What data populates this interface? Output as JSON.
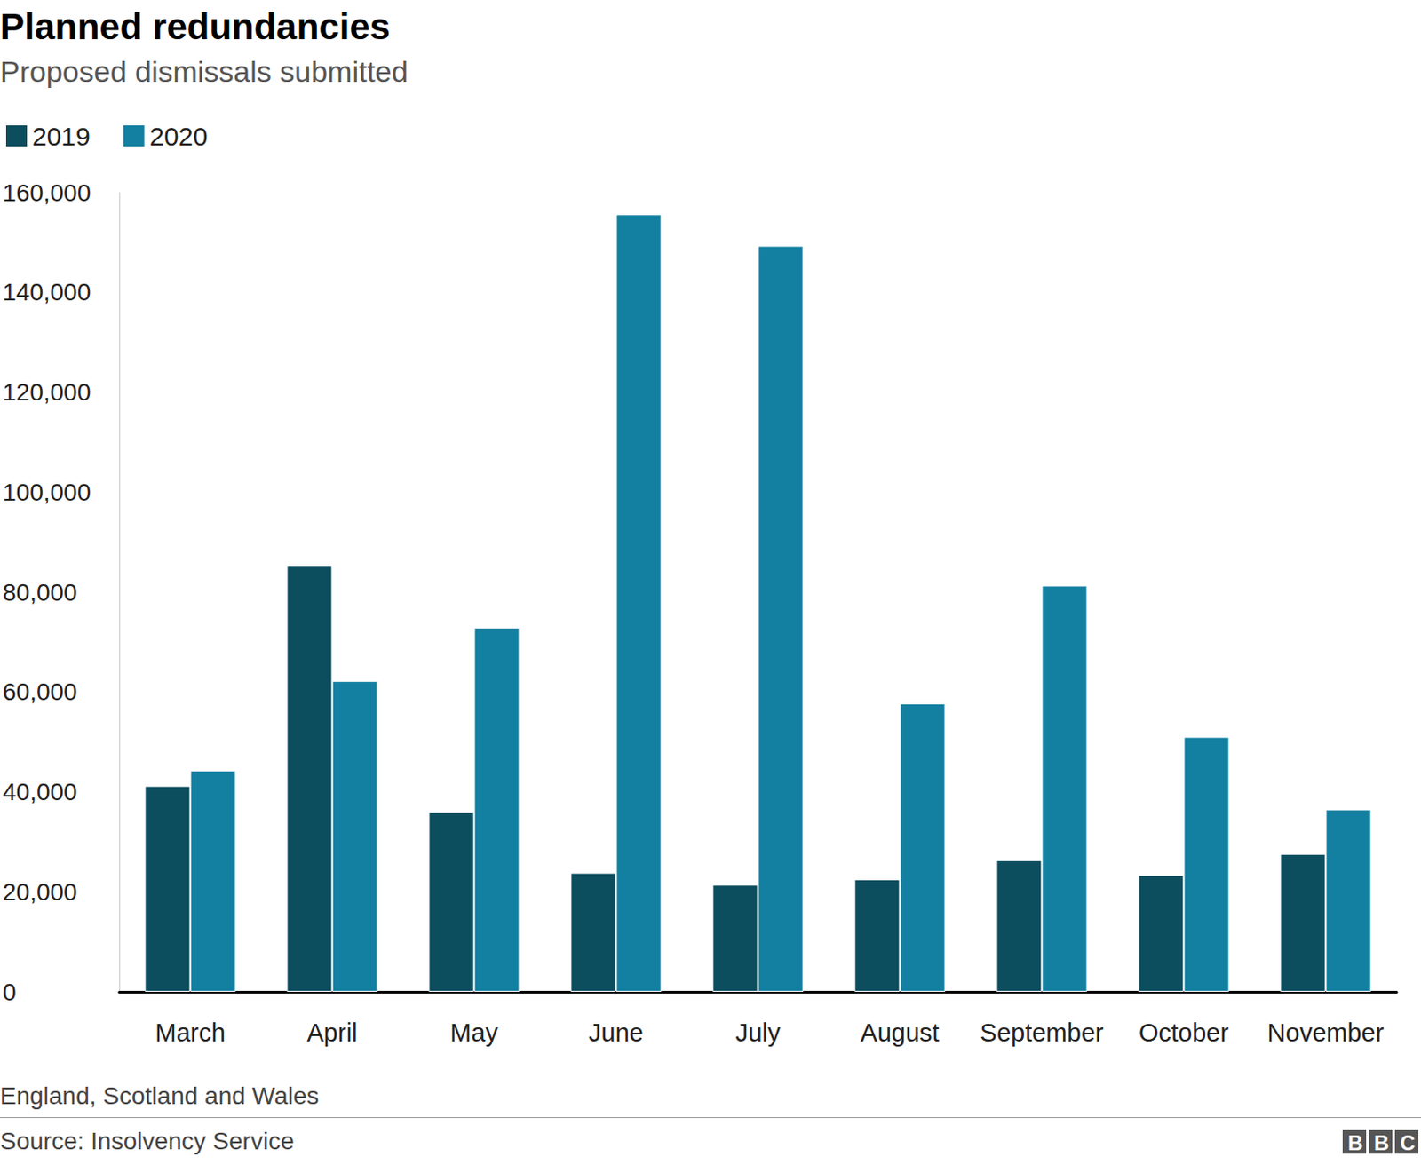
{
  "chart_data": {
    "type": "bar",
    "title": "Planned redundancies",
    "subtitle": "Proposed dismissals submitted",
    "categories": [
      "March",
      "April",
      "May",
      "June",
      "July",
      "August",
      "September",
      "October",
      "November"
    ],
    "series": [
      {
        "name": "2019",
        "color": "#0c4d5e",
        "values": [
          41200,
          85400,
          35900,
          23800,
          21400,
          22500,
          26300,
          23400,
          27600
        ]
      },
      {
        "name": "2020",
        "color": "#1380a1",
        "values": [
          44300,
          62200,
          72900,
          155600,
          149300,
          57700,
          81300,
          51000,
          36500
        ]
      }
    ],
    "ylim": [
      0,
      160000
    ],
    "yticks": [
      0,
      {
        "value": 20000,
        "label": "20,000"
      },
      {
        "value": 40000,
        "label": "40,000"
      },
      {
        "value": 60000,
        "label": "60,000"
      },
      {
        "value": 80000,
        "label": "80,000"
      },
      {
        "value": 100000,
        "label": "100,000"
      },
      {
        "value": 120000,
        "label": "120,000"
      },
      {
        "value": 140000,
        "label": "140,000"
      },
      {
        "value": 160000,
        "label": "160,000"
      }
    ],
    "grid": false,
    "legend": "top-left",
    "footnote": "England, Scotland and Wales",
    "source": "Source: Insolvency Service",
    "logo": "BBC"
  }
}
